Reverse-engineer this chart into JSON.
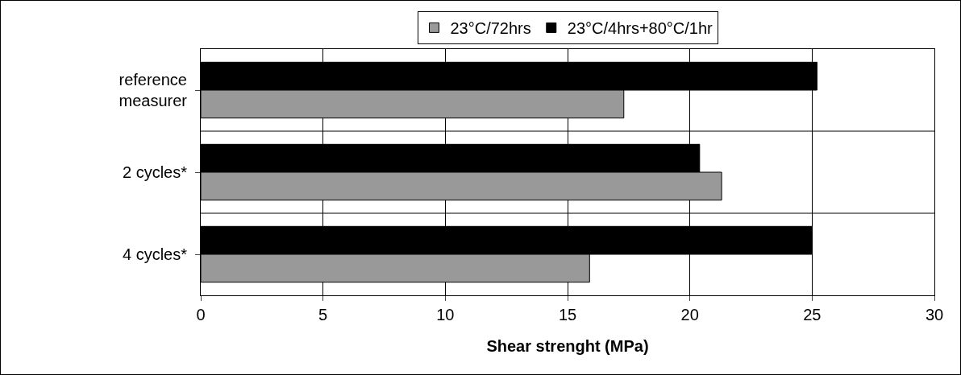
{
  "chart_data": {
    "type": "bar",
    "orientation": "horizontal",
    "xlabel": "Shear strenght (MPa)",
    "categories": [
      "reference measurer",
      "2 cycles*",
      "4 cycles*"
    ],
    "series": [
      {
        "name": "23°C/72hrs",
        "color": "#999999",
        "values": [
          17.3,
          21.3,
          15.9
        ]
      },
      {
        "name": "23°C/4hrs+80°C/1hr",
        "color": "#000000",
        "values": [
          25.2,
          20.4,
          25.0
        ]
      }
    ],
    "xlim": [
      0,
      30
    ],
    "xticks": [
      0,
      5,
      10,
      15,
      20,
      25,
      30
    ],
    "grid": "x",
    "legend": "top"
  }
}
